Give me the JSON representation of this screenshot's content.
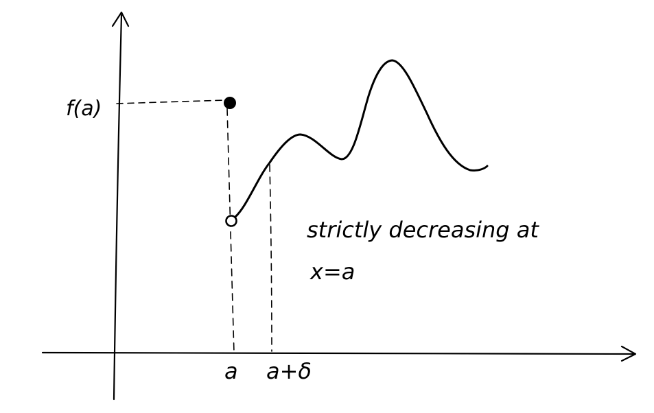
{
  "labels": {
    "y_value": "f(a)",
    "x_point": "a",
    "x_point_delta": "a+δ",
    "annotation_line1": "strictly decreasing at",
    "annotation_line2": "x=a"
  },
  "colors": {
    "ink": "#000000",
    "background": "#ffffff"
  }
}
